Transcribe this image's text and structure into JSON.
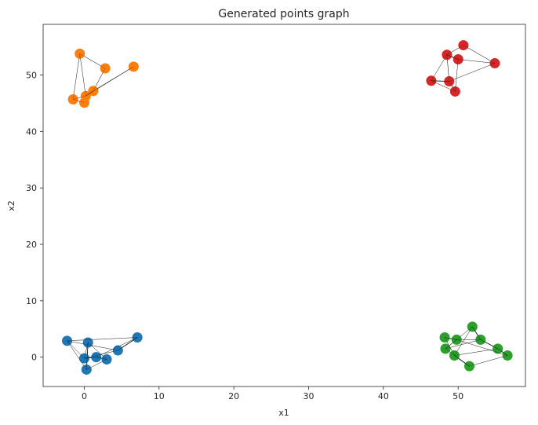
{
  "chart_data": {
    "type": "scatter",
    "title": "Generated points graph",
    "xlabel": "x1",
    "ylabel": "x2",
    "xlim": [
      -5.5,
      59.0
    ],
    "ylim": [
      -5.2,
      59.0
    ],
    "xticks": [
      0,
      10,
      20,
      30,
      40,
      50
    ],
    "yticks": [
      0,
      10,
      20,
      30,
      40,
      50
    ],
    "grid": false,
    "series": [
      {
        "color": "#1f77b4",
        "points": [
          [
            -2.3,
            2.9
          ],
          [
            0.5,
            2.6
          ],
          [
            7.1,
            3.5
          ],
          [
            0.0,
            -0.2
          ],
          [
            1.6,
            0.0
          ],
          [
            3.0,
            -0.4
          ],
          [
            4.5,
            1.2
          ],
          [
            0.3,
            -2.2
          ]
        ],
        "edges": [
          [
            0,
            6,
            0.4
          ],
          [
            0,
            2,
            0.4
          ],
          [
            0,
            3,
            0.4
          ],
          [
            0,
            7,
            0.4
          ],
          [
            1,
            3,
            0.5
          ],
          [
            1,
            5,
            0.4
          ],
          [
            1,
            7,
            0.9
          ],
          [
            2,
            6,
            0.9
          ],
          [
            3,
            4,
            0.9
          ],
          [
            4,
            5,
            0.9
          ],
          [
            3,
            6,
            0.4
          ],
          [
            2,
            4,
            0.4
          ],
          [
            5,
            7,
            0.4
          ]
        ]
      },
      {
        "color": "#ff7f0e",
        "points": [
          [
            -0.6,
            53.8
          ],
          [
            2.8,
            51.2
          ],
          [
            6.6,
            51.5
          ],
          [
            1.2,
            47.2
          ],
          [
            0.2,
            46.3
          ],
          [
            -1.5,
            45.7
          ],
          [
            0.0,
            45.1
          ]
        ],
        "edges": [
          [
            0,
            1,
            0.5
          ],
          [
            0,
            4,
            0.4
          ],
          [
            1,
            3,
            0.5
          ],
          [
            2,
            3,
            0.5
          ],
          [
            2,
            4,
            0.4
          ],
          [
            3,
            4,
            0.9
          ],
          [
            4,
            5,
            0.4
          ],
          [
            5,
            6,
            0.4
          ],
          [
            0,
            5,
            0.4
          ]
        ]
      },
      {
        "color": "#d62728",
        "points": [
          [
            50.7,
            55.3
          ],
          [
            48.5,
            53.6
          ],
          [
            50.0,
            52.8
          ],
          [
            54.9,
            52.1
          ],
          [
            46.4,
            49.0
          ],
          [
            48.8,
            48.9
          ],
          [
            49.6,
            47.1
          ]
        ],
        "edges": [
          [
            0,
            1,
            0.5
          ],
          [
            0,
            3,
            0.5
          ],
          [
            1,
            2,
            0.9
          ],
          [
            1,
            5,
            0.5
          ],
          [
            2,
            3,
            0.4
          ],
          [
            2,
            6,
            0.4
          ],
          [
            3,
            5,
            0.4
          ],
          [
            4,
            5,
            0.9
          ],
          [
            4,
            6,
            0.4
          ],
          [
            5,
            6,
            0.5
          ],
          [
            1,
            4,
            0.4
          ]
        ]
      },
      {
        "color": "#2ca02c",
        "points": [
          [
            51.9,
            5.4
          ],
          [
            48.2,
            3.5
          ],
          [
            49.8,
            3.1
          ],
          [
            53.0,
            3.1
          ],
          [
            48.3,
            1.5
          ],
          [
            55.3,
            1.5
          ],
          [
            49.5,
            0.3
          ],
          [
            56.6,
            0.3
          ],
          [
            51.5,
            -1.6
          ]
        ],
        "edges": [
          [
            0,
            3,
            0.9
          ],
          [
            0,
            6,
            0.4
          ],
          [
            0,
            4,
            0.4
          ],
          [
            1,
            2,
            0.9
          ],
          [
            1,
            6,
            0.5
          ],
          [
            2,
            4,
            0.4
          ],
          [
            2,
            3,
            0.4
          ],
          [
            3,
            5,
            0.9
          ],
          [
            3,
            4,
            0.4
          ],
          [
            5,
            7,
            0.9
          ],
          [
            6,
            8,
            0.9
          ],
          [
            7,
            8,
            0.4
          ],
          [
            4,
            8,
            0.4
          ],
          [
            5,
            6,
            0.4
          ],
          [
            2,
            7,
            0.4
          ]
        ]
      }
    ]
  }
}
